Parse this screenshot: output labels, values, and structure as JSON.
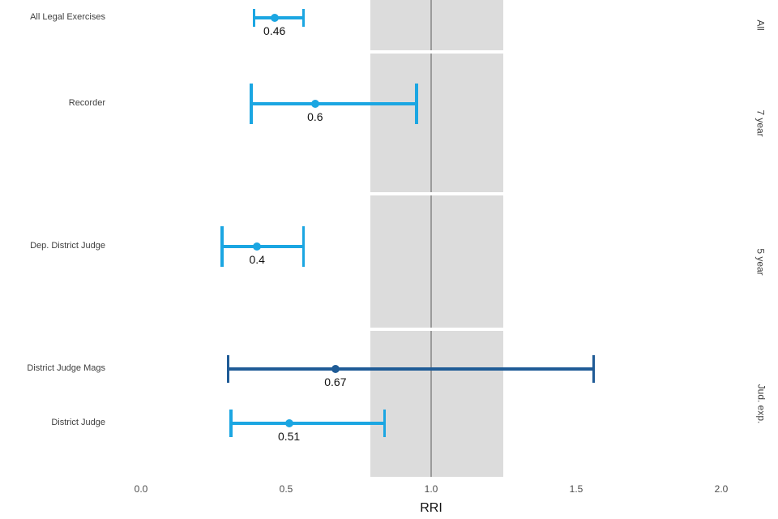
{
  "chart_data": {
    "type": "scatter",
    "subtype": "forest-plot-with-error-bars",
    "title": "",
    "xlabel": "RRI",
    "xlim": [
      -0.1,
      2.1
    ],
    "grid": false,
    "x_ticks": [
      {
        "v": 0.0,
        "label": "0.0"
      },
      {
        "v": 0.5,
        "label": "0.5"
      },
      {
        "v": 1.0,
        "label": "1.0"
      },
      {
        "v": 1.5,
        "label": "1.5"
      },
      {
        "v": 2.0,
        "label": "2.0"
      }
    ],
    "reference_band": {
      "from": 0.79,
      "to": 1.25,
      "color": "#DCDCDC"
    },
    "reference_line": {
      "x": 1.0,
      "color": "#9B9B9B"
    },
    "colors": {
      "light_blue": "#1BA6E2",
      "dark_blue": "#1F5B96"
    },
    "facets": [
      {
        "label": "All",
        "rows": [
          {
            "category": "All Legal Exercises",
            "estimate": 0.46,
            "label": "0.46",
            "low": 0.39,
            "high": 0.56,
            "color": "light_blue"
          }
        ]
      },
      {
        "label": "7 year",
        "rows": [
          {
            "category": "Recorder",
            "estimate": 0.6,
            "label": "0.6",
            "low": 0.38,
            "high": 0.95,
            "color": "light_blue"
          }
        ]
      },
      {
        "label": "5 year",
        "rows": [
          {
            "category": "Dep. District Judge",
            "estimate": 0.4,
            "label": "0.4",
            "low": 0.28,
            "high": 0.56,
            "color": "light_blue"
          }
        ]
      },
      {
        "label": "Jud. exp.",
        "rows": [
          {
            "category": "District Judge Mags",
            "estimate": 0.67,
            "label": "0.67",
            "low": 0.3,
            "high": 1.56,
            "color": "dark_blue"
          },
          {
            "category": "District Judge",
            "estimate": 0.51,
            "label": "0.51",
            "low": 0.31,
            "high": 0.84,
            "color": "light_blue"
          }
        ]
      }
    ]
  }
}
